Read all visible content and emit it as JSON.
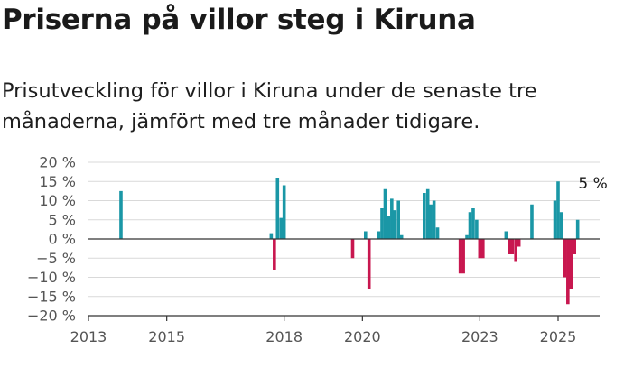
{
  "header": {
    "title": "Priserna på villor steg i Kiruna",
    "subtitle": "Prisutveckling för villor i Kiruna under de senaste tre månaderna, jämfört med tre månader tidigare."
  },
  "colors": {
    "positive": "#1a97a6",
    "negative": "#c8174f",
    "zero_line": "#333333",
    "axis": "#333333"
  },
  "chart_data": {
    "type": "bar",
    "title": "Priserna på villor steg i Kiruna",
    "subtitle": "Prisutveckling för villor i Kiruna under de senaste tre månaderna, jämfört med tre månader tidigare.",
    "xlabel": "",
    "ylabel": "",
    "ylim": [
      -20,
      20
    ],
    "xlim": [
      2013.0,
      2026.25
    ],
    "y_ticks": [
      20,
      15,
      10,
      5,
      0,
      -5,
      -10,
      -15,
      -20
    ],
    "y_tick_labels": [
      "20 %",
      "15 %",
      "10 %",
      "5 %",
      "0 %",
      "−5 %",
      "−10 %",
      "−15 %",
      "−20 %"
    ],
    "x_ticks": [
      2013,
      2015,
      2018,
      2020,
      2023,
      2025
    ],
    "x_tick_labels": [
      "2013",
      "2015",
      "2018",
      "2020",
      "2023",
      "2025"
    ],
    "grid": true,
    "annotation": {
      "text": "5 %",
      "x": 2025.47,
      "y": 5
    },
    "points": [
      {
        "x": 2013.83,
        "y": 12.5
      },
      {
        "x": 2017.67,
        "y": 1.5
      },
      {
        "x": 2017.75,
        "y": -8
      },
      {
        "x": 2017.83,
        "y": 16
      },
      {
        "x": 2017.92,
        "y": 5.5
      },
      {
        "x": 2018.0,
        "y": 14
      },
      {
        "x": 2019.75,
        "y": -5
      },
      {
        "x": 2020.08,
        "y": 2
      },
      {
        "x": 2020.17,
        "y": -13
      },
      {
        "x": 2020.42,
        "y": 2
      },
      {
        "x": 2020.5,
        "y": 8
      },
      {
        "x": 2020.58,
        "y": 13
      },
      {
        "x": 2020.67,
        "y": 6
      },
      {
        "x": 2020.75,
        "y": 10.5
      },
      {
        "x": 2020.83,
        "y": 7.5
      },
      {
        "x": 2020.92,
        "y": 10
      },
      {
        "x": 2021.0,
        "y": 1
      },
      {
        "x": 2021.58,
        "y": 12
      },
      {
        "x": 2021.67,
        "y": 13
      },
      {
        "x": 2021.75,
        "y": 9
      },
      {
        "x": 2021.83,
        "y": 10
      },
      {
        "x": 2021.92,
        "y": 3
      },
      {
        "x": 2022.5,
        "y": -9
      },
      {
        "x": 2022.58,
        "y": -9
      },
      {
        "x": 2022.67,
        "y": 1
      },
      {
        "x": 2022.75,
        "y": 7
      },
      {
        "x": 2022.83,
        "y": 8
      },
      {
        "x": 2022.92,
        "y": 5
      },
      {
        "x": 2023.0,
        "y": -5
      },
      {
        "x": 2023.08,
        "y": -5
      },
      {
        "x": 2023.67,
        "y": 2
      },
      {
        "x": 2023.75,
        "y": -4
      },
      {
        "x": 2023.83,
        "y": -4
      },
      {
        "x": 2023.92,
        "y": -6
      },
      {
        "x": 2024.0,
        "y": -2
      },
      {
        "x": 2024.33,
        "y": 9
      },
      {
        "x": 2024.92,
        "y": 10
      },
      {
        "x": 2025.0,
        "y": 15
      },
      {
        "x": 2025.08,
        "y": 7
      },
      {
        "x": 2025.17,
        "y": -10
      },
      {
        "x": 2025.25,
        "y": -17
      },
      {
        "x": 2025.33,
        "y": -13
      },
      {
        "x": 2025.42,
        "y": -4
      },
      {
        "x": 2025.5,
        "y": 5
      }
    ]
  }
}
